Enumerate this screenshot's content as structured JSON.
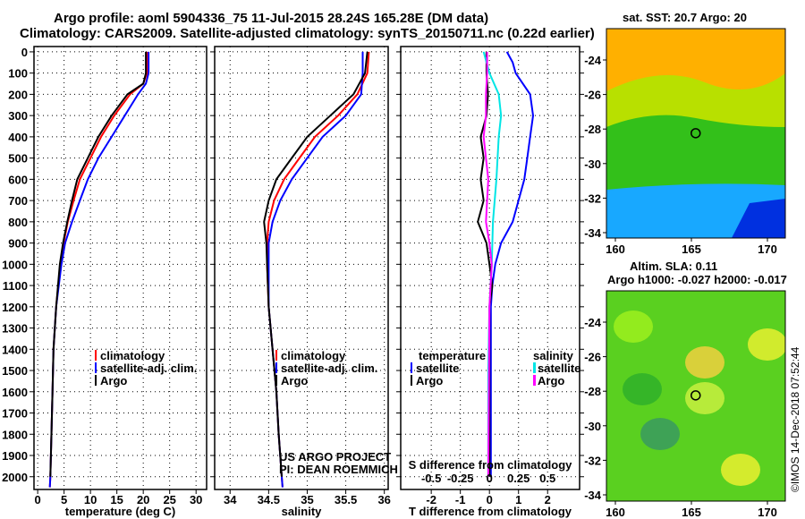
{
  "title_line1": "Argo profile: aoml 5904336_75 11-Jul-2015 28.24S 165.28E (DM data)",
  "title_line2": "Climatology: CARS2009. Satellite-adjusted climatology: synTS_20150711.nc (0.22d earlier)",
  "colors": {
    "climatology": "#ff0000",
    "satellite": "#0000ff",
    "argo": "#000000",
    "sal_satellite": "#00e5e5",
    "sal_argo": "#ff00ff"
  },
  "chart_data": [
    {
      "type": "line",
      "xlabel": "temperature (deg C)",
      "xlim": [
        -0.7,
        32
      ],
      "ylim": [
        -25,
        2060
      ],
      "xticks": [
        0,
        5,
        10,
        15,
        20,
        25,
        30
      ],
      "yticks": [
        0,
        100,
        200,
        300,
        400,
        500,
        600,
        700,
        800,
        900,
        1000,
        1100,
        1200,
        1300,
        1400,
        1500,
        1600,
        1700,
        1800,
        1900,
        2000
      ],
      "legend": [
        "climatology",
        "satellite-adj. clim.",
        "Argo"
      ],
      "series": [
        {
          "name": "climatology",
          "color": "#ff0000",
          "depth": [
            0,
            100,
            150,
            200,
            300,
            400,
            500,
            600,
            700,
            800,
            900,
            1000,
            1200,
            1400,
            1600,
            1800,
            2000,
            2050
          ],
          "values": [
            20.7,
            20.7,
            20,
            17.5,
            14.5,
            12,
            10,
            8,
            6.8,
            5.7,
            4.9,
            4.3,
            3.5,
            3.0,
            2.8,
            2.6,
            2.4,
            2.3
          ]
        },
        {
          "name": "satellite-adj. clim.",
          "color": "#0000ff",
          "depth": [
            0,
            100,
            150,
            200,
            300,
            400,
            500,
            600,
            700,
            800,
            900,
            1000,
            1200,
            1400,
            1600,
            1800,
            2000,
            2050
          ],
          "values": [
            21,
            21,
            20.5,
            19,
            16.5,
            14,
            11.5,
            9.5,
            8,
            6.5,
            5.2,
            4.5,
            3.5,
            3.0,
            2.8,
            2.6,
            2.4,
            2.3
          ]
        },
        {
          "name": "Argo",
          "color": "#000000",
          "depth": [
            0,
            100,
            150,
            200,
            300,
            400,
            500,
            600,
            700,
            800,
            900,
            1000,
            1200,
            1400,
            1600,
            1800,
            2000
          ],
          "values": [
            20.5,
            20.5,
            20,
            17,
            14,
            11.5,
            9.5,
            7.5,
            6.5,
            5.6,
            4.8,
            4.2,
            3.5,
            3.0,
            2.8,
            2.6,
            2.4
          ]
        }
      ]
    },
    {
      "type": "line",
      "xlabel": "salinity",
      "xlim": [
        33.8,
        36.05
      ],
      "ylim": [
        -25,
        2060
      ],
      "xticks": [
        34,
        34.5,
        35,
        35.5,
        36
      ],
      "legend": [
        "climatology",
        "satellite-adj. clim.",
        "Argo"
      ],
      "annotation": [
        "US ARGO PROJECT",
        "PI: DEAN ROEMMICH"
      ],
      "series": [
        {
          "name": "climatology",
          "color": "#ff0000",
          "depth": [
            0,
            100,
            200,
            300,
            400,
            500,
            600,
            700,
            800,
            900,
            1000,
            1200,
            1400,
            1600,
            1800,
            2000,
            2050
          ],
          "values": [
            35.8,
            35.78,
            35.65,
            35.4,
            35.1,
            34.9,
            34.7,
            34.57,
            34.5,
            34.48,
            34.48,
            34.5,
            34.55,
            34.6,
            34.63,
            34.67,
            34.68
          ]
        },
        {
          "name": "satellite-adj. clim.",
          "color": "#0000ff",
          "depth": [
            0,
            100,
            200,
            300,
            400,
            500,
            600,
            700,
            800,
            900,
            1000,
            1200,
            1400,
            1600,
            1800,
            2000,
            2050
          ],
          "values": [
            35.72,
            35.72,
            35.7,
            35.5,
            35.2,
            35.0,
            34.8,
            34.65,
            34.55,
            34.5,
            34.5,
            34.5,
            34.55,
            34.6,
            34.63,
            34.67,
            34.68
          ]
        },
        {
          "name": "Argo",
          "color": "#000000",
          "depth": [
            0,
            100,
            200,
            300,
            400,
            500,
            600,
            700,
            800,
            900,
            1000,
            1200,
            1400,
            1600,
            1800,
            2000
          ],
          "values": [
            35.78,
            35.75,
            35.6,
            35.3,
            35.0,
            34.8,
            34.6,
            34.5,
            34.44,
            34.47,
            34.48,
            34.5,
            34.55,
            34.6,
            34.63,
            34.67
          ]
        }
      ]
    },
    {
      "type": "line",
      "xlabel": "T difference from climatology",
      "xlim": [
        -3.05,
        3.1
      ],
      "ylim": [
        -25,
        2060
      ],
      "xticks": [
        -2,
        -1,
        0,
        1,
        2
      ],
      "x2label": "S difference from climatology",
      "x2ticks": [
        "-0.5",
        "-0.25",
        "0",
        "0.25",
        "0.5"
      ],
      "x2ticks_values": [
        -0.5,
        -0.25,
        0,
        0.25,
        0.5
      ],
      "s_to_t_scale": 4,
      "legend_temperature": [
        "temperature",
        "satellite",
        "Argo"
      ],
      "legend_salinity": [
        "salinity",
        "satellite",
        "Argo"
      ],
      "series": [
        {
          "name": "temperature satellite",
          "color": "#0000ff",
          "unit": "T",
          "depth": [
            0,
            50,
            100,
            200,
            300,
            400,
            500,
            600,
            700,
            800,
            900,
            1000,
            1100,
            1200,
            2000
          ],
          "values": [
            0.6,
            0.8,
            0.9,
            1.4,
            1.5,
            1.4,
            1.3,
            1.2,
            1.0,
            0.8,
            0.4,
            0.2,
            0.1,
            0.05,
            0.05
          ]
        },
        {
          "name": "temperature Argo",
          "color": "#000000",
          "unit": "T",
          "depth": [
            0,
            100,
            200,
            300,
            400,
            500,
            600,
            700,
            800,
            900,
            1000,
            1100,
            1200,
            2000
          ],
          "values": [
            -0.1,
            -0.1,
            -0.05,
            -0.1,
            -0.3,
            -0.2,
            -0.3,
            -0.2,
            -0.4,
            -0.1,
            0,
            0.1,
            0,
            0
          ]
        },
        {
          "name": "salinity satellite",
          "color": "#00e5e5",
          "unit": "S",
          "depth": [
            0,
            100,
            200,
            300,
            400,
            500,
            600,
            800,
            1000,
            1200,
            1500,
            2000
          ],
          "values": [
            -0.05,
            0,
            0.08,
            0.1,
            0.08,
            0.07,
            0.06,
            0.03,
            0.02,
            0,
            -0.01,
            -0.01
          ]
        },
        {
          "name": "salinity Argo",
          "color": "#ff00ff",
          "unit": "S",
          "depth": [
            0,
            100,
            200,
            300,
            400,
            500,
            600,
            700,
            800,
            900,
            1000,
            1200,
            2000
          ],
          "values": [
            -0.02,
            -0.02,
            -0.03,
            -0.03,
            -0.05,
            -0.03,
            -0.01,
            -0.02,
            -0.03,
            0,
            0.02,
            0,
            -0.01
          ]
        }
      ]
    }
  ],
  "map_sst": {
    "title": "sat. SST: 20.7 Argo: 20",
    "lat_ticks": [
      "-24",
      "-26",
      "-28",
      "-30",
      "-32",
      "-34"
    ],
    "lon_ticks": [
      "160",
      "165",
      "170"
    ]
  },
  "map_sla": {
    "title1": "Altim. SLA: 0.11",
    "title2": "Argo h1000: -0.027 h2000: -0.017",
    "lat_ticks": [
      "-24",
      "-26",
      "-28",
      "-30",
      "-32",
      "-34"
    ],
    "lon_ticks": [
      "160",
      "165",
      "170"
    ]
  },
  "credit": "©IMOS 14-Dec-2018 07:52:44"
}
